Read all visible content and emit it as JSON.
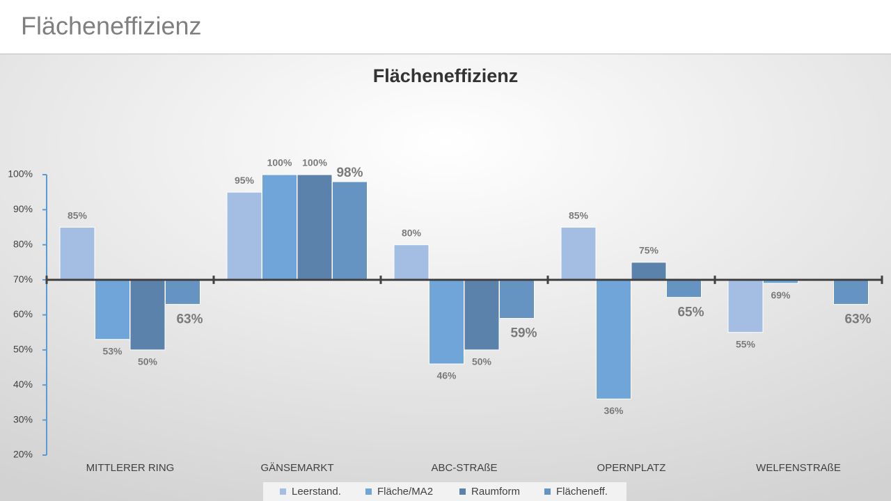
{
  "header": {
    "title": "Flächeneffizienz"
  },
  "chart_data": {
    "type": "bar",
    "title": "Flächeneffizienz",
    "categories": [
      "MITTLERER RING",
      "GÄNSEMARKT",
      "ABC-STRAßE",
      "OPERNPLATZ",
      "WELFENSTRAßE"
    ],
    "series": [
      {
        "name": "Leerstand.",
        "color": "#a3bde3",
        "values": [
          85,
          95,
          80,
          85,
          55
        ],
        "value_labels": [
          "85%",
          "95%",
          "80%",
          "85%",
          "55%"
        ]
      },
      {
        "name": "Fläche/MA2",
        "color": "#6fa5d9",
        "values": [
          53,
          100,
          46,
          36,
          69
        ],
        "value_labels": [
          "53%",
          "100%",
          "46%",
          "36%",
          "69%"
        ]
      },
      {
        "name": "Raumform",
        "color": "#5b82ab",
        "values": [
          50,
          100,
          50,
          75,
          null
        ],
        "value_labels": [
          "50%",
          "100%",
          "50%",
          "75%",
          null
        ]
      },
      {
        "name": "Flächeneff.",
        "color": "#6594c2",
        "values": [
          63,
          98,
          59,
          65,
          63
        ],
        "value_labels": [
          "63%",
          "98%",
          "59%",
          "65%",
          "63%"
        ]
      }
    ],
    "ylim": [
      20,
      100
    ],
    "yticks": [
      {
        "value": 20,
        "label": "20%"
      },
      {
        "value": 30,
        "label": "30%"
      },
      {
        "value": 40,
        "label": "40%"
      },
      {
        "value": 50,
        "label": "50%"
      },
      {
        "value": 60,
        "label": "60%"
      },
      {
        "value": 70,
        "label": "70%"
      },
      {
        "value": 80,
        "label": "80%"
      },
      {
        "value": 90,
        "label": "90%"
      },
      {
        "value": 100,
        "label": "100%"
      }
    ],
    "x_axis_crosses": 70,
    "legend": "bottom"
  }
}
